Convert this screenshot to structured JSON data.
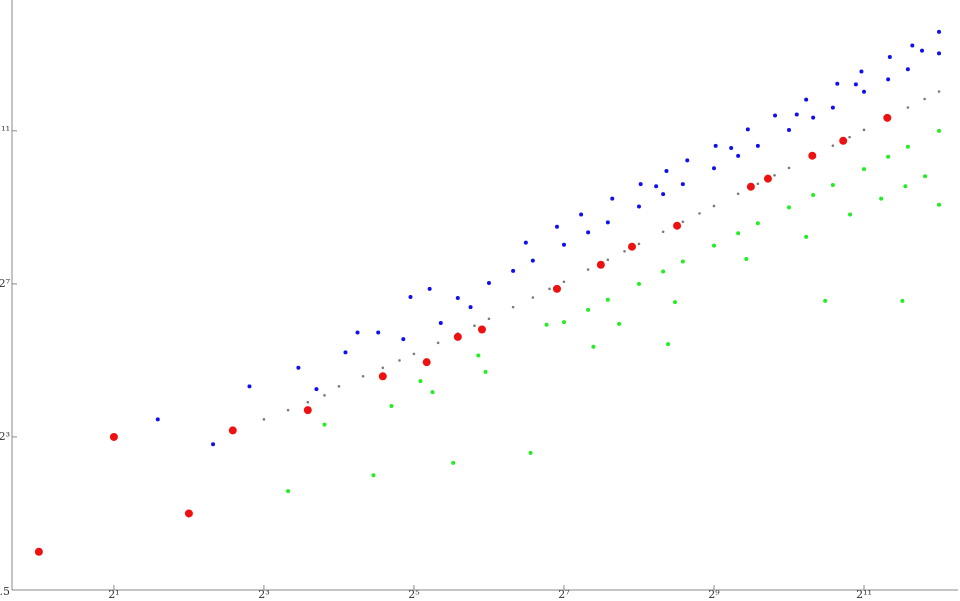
{
  "chart_data": {
    "type": "scatter",
    "log_x": true,
    "log_y": true,
    "log_base": 2,
    "xlim": [
      0.78,
      4881
    ],
    "ylim": [
      0.5,
      21900
    ],
    "xticks": [
      {
        "value": 2,
        "label": "2¹"
      },
      {
        "value": 8,
        "label": "2³"
      },
      {
        "value": 32,
        "label": "2⁵"
      },
      {
        "value": 128,
        "label": "2⁷"
      },
      {
        "value": 512,
        "label": "2⁹"
      },
      {
        "value": 2048,
        "label": "2¹¹"
      }
    ],
    "yticks": [
      0.5,
      {
        "value": 8,
        "label": "2³"
      },
      {
        "value": 128,
        "label": "2⁷"
      },
      {
        "value": 2048,
        "label": "2¹¹"
      }
    ],
    "series": [
      {
        "color": "#7a7a7a",
        "x": [
          8,
          10,
          12,
          14,
          16,
          20,
          24,
          28,
          32,
          40,
          48,
          56,
          64,
          80,
          96,
          112,
          128,
          160,
          192,
          224,
          256,
          320,
          384,
          448,
          512,
          640,
          768,
          896,
          1024,
          1280,
          1536,
          1792,
          2048,
          2560,
          3072,
          3584,
          4096
        ],
        "y": [
          11,
          13,
          15,
          17,
          20,
          24,
          28,
          32,
          36,
          44,
          52,
          60,
          68,
          84,
          100,
          117,
          133,
          166,
          198,
          231,
          264,
          329,
          394,
          459,
          525,
          655,
          785,
          915,
          1046,
          1305,
          1565,
          1825,
          2085,
          2605,
          3125,
          3645,
          4170
        ]
      },
      {
        "color": "#22ee22",
        "x": [
          4,
          6,
          10,
          14,
          22,
          26,
          34,
          38,
          46,
          58,
          62,
          94,
          109,
          168,
          213,
          335,
          357,
          690,
          1430,
          2920,
          4096,
          128,
          160,
          192,
          256,
          320,
          384,
          512,
          640,
          768,
          1024,
          1280,
          1536,
          2048,
          2560,
          3072,
          4096,
          1200,
          1800,
          2400,
          3000,
          3600
        ],
        "y": [
          2,
          9,
          3,
          10,
          4,
          14,
          22,
          18,
          5,
          35,
          26,
          6,
          61,
          41,
          62,
          43,
          92,
          201,
          94,
          94,
          537,
          64,
          80,
          96,
          128,
          160,
          192,
          256,
          320,
          384,
          512,
          640,
          768,
          1024,
          1280,
          1536,
          2048,
          300,
          450,
          600,
          750,
          900
        ]
      },
      {
        "color": "#1010ee",
        "x": [
          2,
          3,
          5,
          7,
          11,
          13,
          17,
          19,
          23,
          29,
          31,
          37,
          41,
          48,
          54,
          64,
          80,
          96,
          128,
          160,
          192,
          256,
          320,
          384,
          512,
          640,
          768,
          1024,
          1280,
          1536,
          2048,
          2560,
          3072,
          4096,
          90,
          120,
          150,
          200,
          260,
          330,
          400,
          520,
          700,
          900,
          1200,
          1600,
          2000,
          2600,
          3200,
          4096,
          300,
          600,
          1100,
          1900,
          3500
        ],
        "y": [
          8,
          11,
          7,
          20,
          28,
          19,
          37,
          53,
          53,
          47,
          101,
          117,
          63,
          99,
          84,
          130,
          162,
          195,
          260,
          325,
          390,
          520,
          650,
          780,
          1040,
          1300,
          1560,
          2080,
          2600,
          3120,
          4160,
          5200,
          6240,
          8320,
          270,
          360,
          450,
          600,
          780,
          990,
          1200,
          1560,
          2100,
          2700,
          3600,
          4800,
          6000,
          7800,
          9600,
          12300,
          750,
          1500,
          2750,
          4750,
          8750
        ]
      },
      {
        "color": "#ee1111",
        "x": [
          1,
          2,
          4,
          6,
          12,
          24,
          36,
          48,
          60,
          120,
          180,
          240,
          364,
          720,
          843,
          1270,
          1690,
          2540
        ],
        "y": [
          1,
          8,
          2,
          9,
          13,
          24,
          31,
          49,
          56,
          117,
          181,
          251,
          367,
          744,
          861,
          1305,
          1710,
          2590
        ]
      }
    ]
  }
}
